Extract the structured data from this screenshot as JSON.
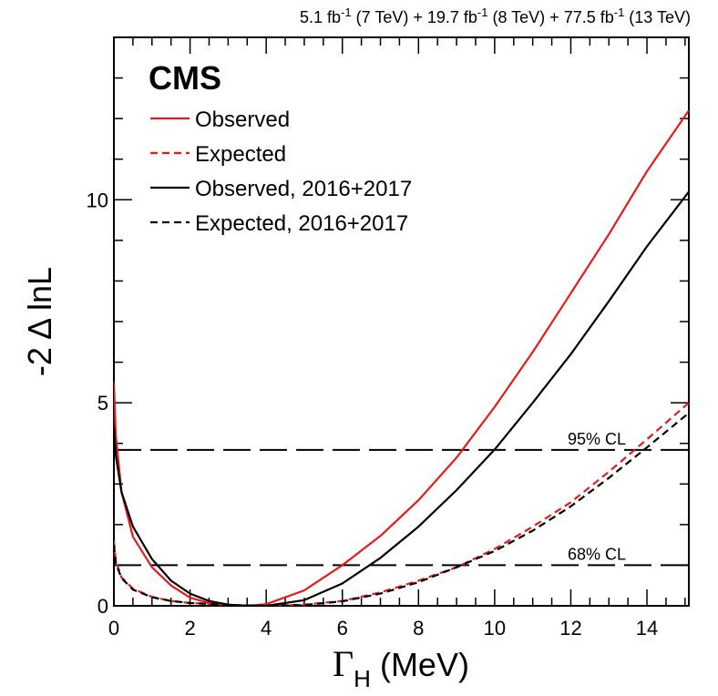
{
  "chart_data": {
    "type": "line",
    "experiment_label": "CMS",
    "luminosity": {
      "parts": [
        {
          "value": "5.1",
          "unit": "fb",
          "exp": "-1",
          "energy": "(7 TeV)"
        },
        {
          "value": "19.7",
          "unit": "fb",
          "exp": "-1",
          "energy": "(8 TeV)"
        },
        {
          "value": "77.5",
          "unit": "fb",
          "exp": "-1",
          "energy": "(13 TeV)"
        }
      ],
      "sep": "+"
    },
    "xlabel": {
      "symbol": "Γ",
      "sub": "H",
      "unit": "(MeV)"
    },
    "ylabel": "-2 Δ lnL",
    "xlim": [
      0,
      15.1
    ],
    "ylim": [
      0,
      14
    ],
    "xticks": [
      0,
      2,
      4,
      6,
      8,
      10,
      12,
      14
    ],
    "yticks": [
      0,
      5,
      10
    ],
    "reference_lines": [
      {
        "y": 3.84,
        "label": "95% CL"
      },
      {
        "y": 1.0,
        "label": "68% CL"
      }
    ],
    "series": [
      {
        "name": "Observed",
        "color": "#e8191b",
        "dash": false,
        "x": [
          0,
          0.05,
          0.2,
          0.5,
          1.0,
          1.5,
          2.0,
          2.5,
          3.0,
          3.5,
          4.0,
          5.0,
          6.0,
          7.0,
          8.0,
          9.0,
          10.0,
          11.0,
          12.0,
          13.0,
          14.0,
          15.1
        ],
        "y": [
          5.5,
          4.2,
          2.8,
          1.7,
          0.95,
          0.5,
          0.2,
          0.07,
          0.02,
          0.0,
          0.04,
          0.38,
          1.0,
          1.72,
          2.6,
          3.65,
          4.9,
          6.25,
          7.7,
          9.15,
          10.7,
          12.2
        ]
      },
      {
        "name": "Expected",
        "color": "#e8191b",
        "dash": true,
        "x": [
          0,
          0.05,
          0.2,
          0.5,
          1.0,
          1.5,
          2.0,
          3.0,
          4.0,
          5.0,
          6.0,
          7.0,
          8.0,
          9.0,
          10.0,
          11.0,
          12.0,
          13.0,
          14.0,
          15.1
        ],
        "y": [
          1.6,
          1.1,
          0.7,
          0.42,
          0.22,
          0.12,
          0.07,
          0.02,
          0.0,
          0.03,
          0.12,
          0.33,
          0.62,
          0.95,
          1.4,
          1.95,
          2.55,
          3.3,
          4.1,
          5.0
        ]
      },
      {
        "name": "Observed, 2016+2017",
        "color": "#000000",
        "dash": false,
        "x": [
          0,
          0.05,
          0.2,
          0.5,
          1.0,
          1.5,
          2.0,
          2.5,
          3.0,
          3.5,
          4.0,
          5.0,
          6.0,
          7.0,
          8.0,
          9.0,
          10.0,
          11.0,
          12.0,
          13.0,
          14.0,
          15.1
        ],
        "y": [
          4.4,
          3.7,
          2.8,
          1.95,
          1.15,
          0.62,
          0.3,
          0.12,
          0.03,
          0.0,
          0.0,
          0.14,
          0.55,
          1.18,
          1.95,
          2.85,
          3.85,
          5.0,
          6.2,
          7.5,
          8.85,
          10.2
        ]
      },
      {
        "name": "Expected, 2016+2017",
        "color": "#000000",
        "dash": true,
        "x": [
          0,
          0.05,
          0.2,
          0.5,
          1.0,
          1.5,
          2.0,
          3.0,
          4.0,
          5.0,
          6.0,
          7.0,
          8.0,
          9.0,
          10.0,
          11.0,
          12.0,
          13.0,
          14.0,
          15.1
        ],
        "y": [
          1.5,
          1.05,
          0.68,
          0.4,
          0.21,
          0.12,
          0.07,
          0.02,
          0.0,
          0.02,
          0.11,
          0.3,
          0.58,
          0.95,
          1.35,
          1.85,
          2.45,
          3.15,
          3.9,
          4.75
        ]
      }
    ]
  }
}
